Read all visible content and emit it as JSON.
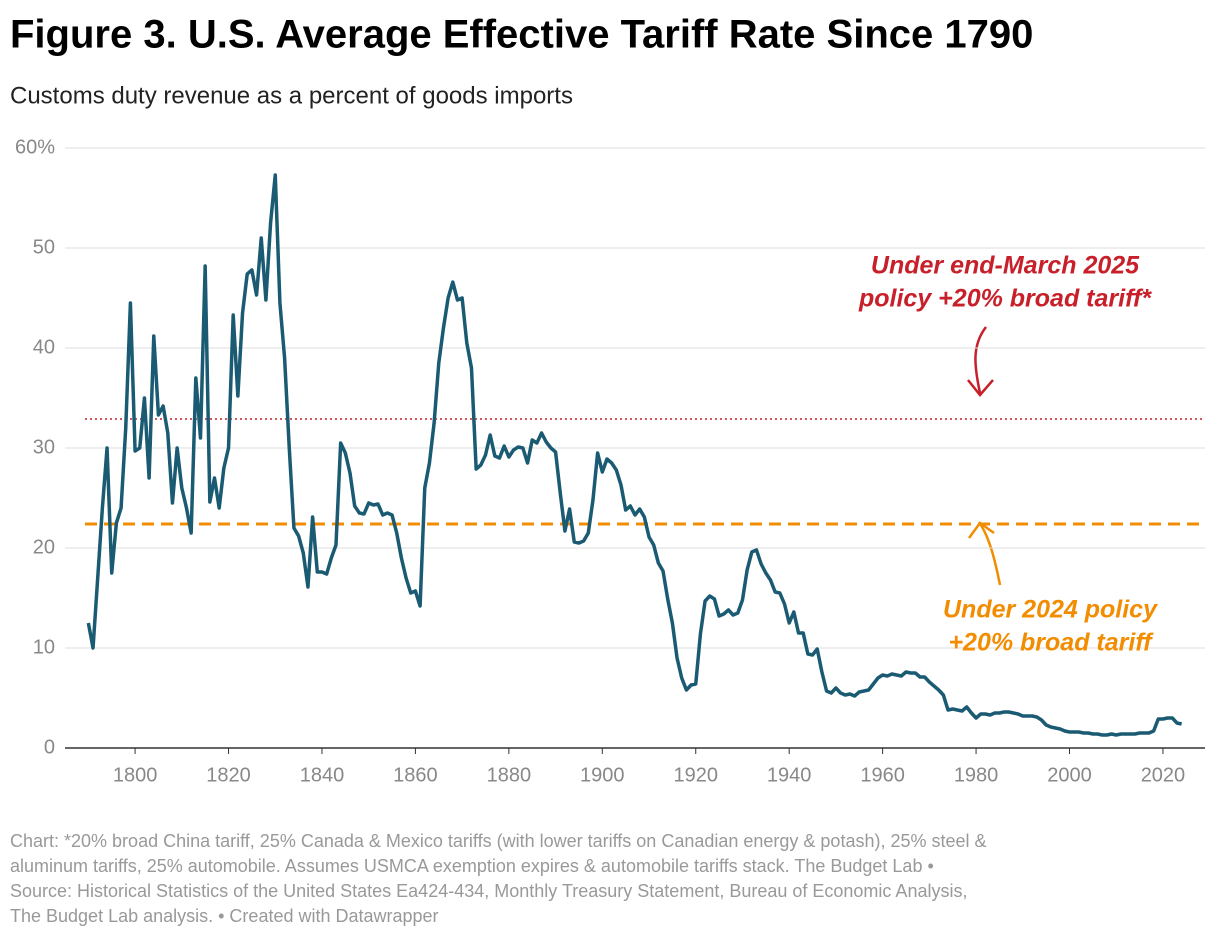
{
  "chart_data": {
    "type": "line",
    "title": "Figure 3. U.S. Average Effective Tariff Rate Since 1790",
    "subtitle": "Customs duty revenue as a percent of goods imports",
    "notes": [
      "Chart:  *20% broad China tariff, 25% Canada & Mexico tariffs (with lower tariffs on Canadian energy & potash), 25% steel &",
      "aluminum tariffs, 25% automobile.  Assumes USMCA exemption expires & automobile tariffs stack. The Budget Lab •",
      "Source: Historical Statistics of the United States Ea424-434, Monthly Treasury Statement, Bureau of Economic Analysis,",
      "The Budget Lab analysis. • Created with Datawrapper"
    ],
    "xlim": [
      1785,
      2029
    ],
    "ylim": [
      0,
      60
    ],
    "xticks": [
      1800,
      1820,
      1840,
      1860,
      1880,
      1900,
      1920,
      1940,
      1960,
      1980,
      2000,
      2020
    ],
    "yticks": [
      0,
      10,
      20,
      30,
      40,
      50,
      {
        "value": 60,
        "label": "60%"
      }
    ],
    "grid": true,
    "x": [
      1790,
      1791,
      1792,
      1793,
      1794,
      1795,
      1796,
      1797,
      1798,
      1799,
      1800,
      1801,
      1802,
      1803,
      1804,
      1805,
      1806,
      1807,
      1808,
      1809,
      1810,
      1811,
      1812,
      1813,
      1814,
      1815,
      1816,
      1817,
      1818,
      1819,
      1820,
      1821,
      1822,
      1823,
      1824,
      1825,
      1826,
      1827,
      1828,
      1829,
      1830,
      1831,
      1832,
      1833,
      1834,
      1835,
      1836,
      1837,
      1838,
      1839,
      1840,
      1841,
      1842,
      1843,
      1844,
      1845,
      1846,
      1847,
      1848,
      1849,
      1850,
      1851,
      1852,
      1853,
      1854,
      1855,
      1856,
      1857,
      1858,
      1859,
      1860,
      1861,
      1862,
      1863,
      1864,
      1865,
      1866,
      1867,
      1868,
      1869,
      1870,
      1871,
      1872,
      1873,
      1874,
      1875,
      1876,
      1877,
      1878,
      1879,
      1880,
      1881,
      1882,
      1883,
      1884,
      1885,
      1886,
      1887,
      1888,
      1889,
      1890,
      1891,
      1892,
      1893,
      1894,
      1895,
      1896,
      1897,
      1898,
      1899,
      1900,
      1901,
      1902,
      1903,
      1904,
      1905,
      1906,
      1907,
      1908,
      1909,
      1910,
      1911,
      1912,
      1913,
      1914,
      1915,
      1916,
      1917,
      1918,
      1919,
      1920,
      1921,
      1922,
      1923,
      1924,
      1925,
      1926,
      1927,
      1928,
      1929,
      1930,
      1931,
      1932,
      1933,
      1934,
      1935,
      1936,
      1937,
      1938,
      1939,
      1940,
      1941,
      1942,
      1943,
      1944,
      1945,
      1946,
      1947,
      1948,
      1949,
      1950,
      1951,
      1952,
      1953,
      1954,
      1955,
      1956,
      1957,
      1958,
      1959,
      1960,
      1961,
      1962,
      1963,
      1964,
      1965,
      1966,
      1967,
      1968,
      1969,
      1970,
      1971,
      1972,
      1973,
      1974,
      1975,
      1976,
      1977,
      1978,
      1979,
      1980,
      1981,
      1982,
      1983,
      1984,
      1985,
      1986,
      1987,
      1988,
      1989,
      1990,
      1991,
      1992,
      1993,
      1994,
      1995,
      1996,
      1997,
      1998,
      1999,
      2000,
      2001,
      2002,
      2003,
      2004,
      2005,
      2006,
      2007,
      2008,
      2009,
      2010,
      2011,
      2012,
      2013,
      2014,
      2015,
      2016,
      2017,
      2018,
      2019,
      2020,
      2021,
      2022,
      2023,
      2024
    ],
    "series": [
      {
        "color": "#1a5b73",
        "values": [
          12.5,
          10,
          17,
          24,
          30,
          17.5,
          22.5,
          24,
          32,
          44.5,
          29.7,
          30,
          35,
          27,
          41.2,
          33.3,
          34.2,
          31.5,
          24.5,
          30,
          26,
          24,
          21.5,
          37,
          31,
          48.2,
          24.6,
          27,
          24,
          28,
          30,
          43.3,
          35.2,
          43.5,
          47.4,
          47.8,
          45.3,
          51,
          44.8,
          52.5,
          57.3,
          44.5,
          39,
          30,
          22,
          21.2,
          19.5,
          16.1,
          23.1,
          17.6,
          17.6,
          17.4,
          19,
          20.3,
          30.5,
          29.5,
          27.5,
          24.2,
          23.5,
          23.4,
          24.5,
          24.3,
          24.4,
          23.3,
          23.5,
          23.3,
          21.5,
          19,
          17,
          15.5,
          15.7,
          14.2,
          26,
          28.5,
          32.5,
          38.5,
          42,
          45,
          46.6,
          44.8,
          45,
          40.5,
          38,
          27.9,
          28.3,
          29.3,
          31.3,
          29.2,
          29,
          30.2,
          29.1,
          29.8,
          30.1,
          30,
          28.5,
          30.8,
          30.5,
          31.5,
          30.6,
          30,
          29.6,
          25.5,
          21.7,
          23.9,
          20.6,
          20.5,
          20.7,
          21.5,
          24.8,
          29.5,
          27.6,
          28.9,
          28.5,
          27.8,
          26.3,
          23.8,
          24.2,
          23.3,
          23.9,
          23.1,
          21.1,
          20.3,
          18.5,
          17.7,
          14.9,
          12.5,
          9,
          7,
          5.8,
          6.3,
          6.4,
          11.4,
          14.7,
          15.2,
          14.9,
          13.2,
          13.4,
          13.8,
          13.3,
          13.5,
          14.8,
          17.8,
          19.6,
          19.8,
          18.4,
          17.5,
          16.8,
          15.6,
          15.5,
          14.4,
          12.5,
          13.6,
          11.5,
          11.5,
          9.4,
          9.3,
          9.9,
          7.6,
          5.7,
          5.5,
          6.0,
          5.5,
          5.3,
          5.4,
          5.2,
          5.6,
          5.7,
          5.8,
          6.4,
          7.0,
          7.3,
          7.2,
          7.4,
          7.3,
          7.2,
          7.6,
          7.5,
          7.5,
          7.1,
          7.1,
          6.6,
          6.2,
          5.8,
          5.3,
          3.8,
          3.9,
          3.8,
          3.7,
          4.1,
          3.5,
          3.0,
          3.4,
          3.4,
          3.3,
          3.5,
          3.5,
          3.6,
          3.6,
          3.5,
          3.4,
          3.2,
          3.2,
          3.2,
          3.1,
          2.8,
          2.3,
          2.1,
          2.0,
          1.9,
          1.7,
          1.6,
          1.6,
          1.6,
          1.5,
          1.5,
          1.4,
          1.4,
          1.3,
          1.3,
          1.4,
          1.3,
          1.4,
          1.4,
          1.4,
          1.4,
          1.5,
          1.5,
          1.5,
          1.7,
          2.9,
          2.9,
          3.0,
          3.0,
          2.5,
          2.4
        ]
      }
    ],
    "reference_lines": [
      {
        "value": 32.9,
        "color": "#c8202a",
        "style": "dotted",
        "label_lines": [
          "Under end-March 2025",
          "policy +20% broad tariff*"
        ]
      },
      {
        "value": 22.4,
        "color": "#f28c00",
        "style": "dashed",
        "label_lines": [
          "Under 2024 policy",
          "+20% broad tariff"
        ]
      }
    ]
  }
}
